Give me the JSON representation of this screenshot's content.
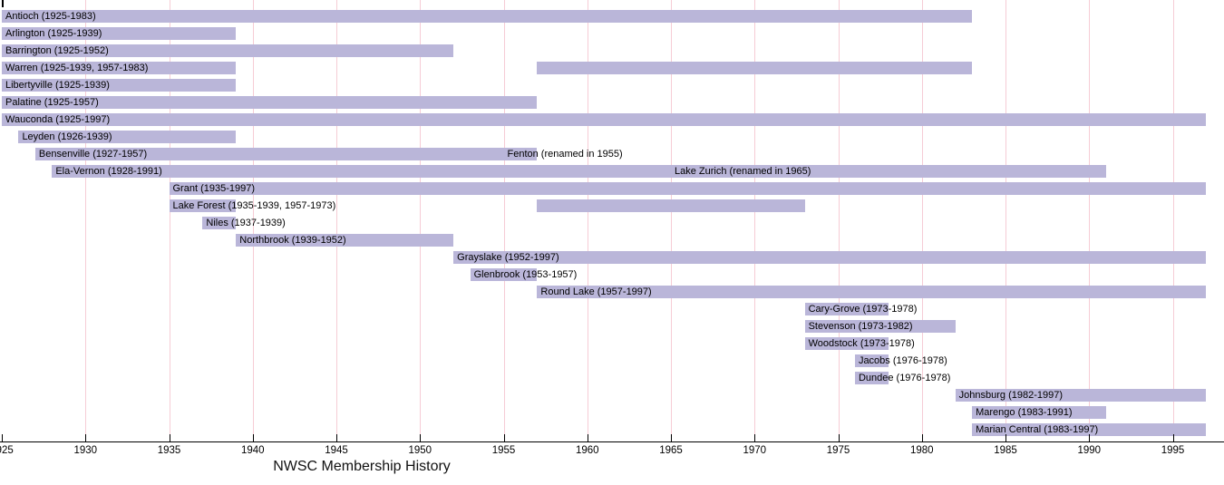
{
  "chart_data": {
    "type": "bar",
    "subtype": "gantt-timeline",
    "title": "NWSC Membership History",
    "x_axis": {
      "min": 1925,
      "max": 1998,
      "tick_years": [
        1925,
        1930,
        1935,
        1940,
        1945,
        1950,
        1955,
        1960,
        1965,
        1970,
        1975,
        1980,
        1985,
        1990,
        1995
      ],
      "tick_labels": [
        "1925",
        "1930",
        "1935",
        "1940",
        "1945",
        "1950",
        "1955",
        "1960",
        "1965",
        "1970",
        "1975",
        "1980",
        "1985",
        "1990",
        "1995"
      ],
      "grid": true
    },
    "colors": {
      "bar_fill": "#bab6d9",
      "gridline": "#f6ccd5",
      "axis": "#000000",
      "text": "#000000"
    },
    "legend": "none",
    "rows": [
      {
        "name": "Antioch",
        "label": "Antioch (1925-1983)",
        "segments": [
          [
            1925,
            1983
          ]
        ]
      },
      {
        "name": "Arlington",
        "label": "Arlington (1925-1939)",
        "segments": [
          [
            1925,
            1939
          ]
        ]
      },
      {
        "name": "Barrington",
        "label": "Barrington (1925-1952)",
        "segments": [
          [
            1925,
            1952
          ]
        ]
      },
      {
        "name": "Warren",
        "label": "Warren (1925-1939, 1957-1983)",
        "segments": [
          [
            1925,
            1939
          ],
          [
            1957,
            1983
          ]
        ]
      },
      {
        "name": "Libertyville",
        "label": "Libertyville (1925-1939)",
        "segments": [
          [
            1925,
            1939
          ]
        ]
      },
      {
        "name": "Palatine",
        "label": "Palatine (1925-1957)",
        "segments": [
          [
            1925,
            1957
          ]
        ]
      },
      {
        "name": "Wauconda",
        "label": "Wauconda (1925-1997)",
        "segments": [
          [
            1925,
            1997
          ]
        ]
      },
      {
        "name": "Leyden",
        "label": "Leyden (1926-1939)",
        "segments": [
          [
            1926,
            1939
          ]
        ]
      },
      {
        "name": "Bensenville",
        "label": "Bensenville (1927-1957)",
        "segments": [
          [
            1927,
            1957
          ]
        ],
        "secondary_label": {
          "text": "Fenton (renamed in 1955)",
          "anchor_year": 1955
        }
      },
      {
        "name": "Ela-Vernon",
        "label": "Ela-Vernon (1928-1991)",
        "segments": [
          [
            1928,
            1991
          ]
        ],
        "secondary_label": {
          "text": "Lake Zurich (renamed in 1965)",
          "anchor_year": 1965
        }
      },
      {
        "name": "Grant",
        "label": "Grant (1935-1997)",
        "segments": [
          [
            1935,
            1997
          ]
        ]
      },
      {
        "name": "Lake Forest",
        "label": "Lake Forest (1935-1939, 1957-1973)",
        "segments": [
          [
            1935,
            1939
          ],
          [
            1957,
            1973
          ]
        ]
      },
      {
        "name": "Niles",
        "label": "Niles (1937-1939)",
        "segments": [
          [
            1937,
            1939
          ]
        ]
      },
      {
        "name": "Northbrook",
        "label": "Northbrook (1939-1952)",
        "segments": [
          [
            1939,
            1952
          ]
        ]
      },
      {
        "name": "Grayslake",
        "label": "Grayslake (1952-1997)",
        "segments": [
          [
            1952,
            1997
          ]
        ]
      },
      {
        "name": "Glenbrook",
        "label": "Glenbrook (1953-1957)",
        "segments": [
          [
            1953,
            1957
          ]
        ]
      },
      {
        "name": "Round Lake",
        "label": "Round Lake (1957-1997)",
        "segments": [
          [
            1957,
            1997
          ]
        ]
      },
      {
        "name": "Cary-Grove",
        "label": "Cary-Grove (1973-1978)",
        "segments": [
          [
            1973,
            1978
          ]
        ]
      },
      {
        "name": "Stevenson",
        "label": "Stevenson (1973-1982)",
        "segments": [
          [
            1973,
            1982
          ]
        ]
      },
      {
        "name": "Woodstock",
        "label": "Woodstock (1973-1978)",
        "segments": [
          [
            1973,
            1978
          ]
        ]
      },
      {
        "name": "Jacobs",
        "label": "Jacobs (1976-1978)",
        "segments": [
          [
            1976,
            1978
          ]
        ]
      },
      {
        "name": "Dundee",
        "label": "Dundee (1976-1978)",
        "segments": [
          [
            1976,
            1978
          ]
        ]
      },
      {
        "name": "Johnsburg",
        "label": "Johnsburg (1982-1997)",
        "segments": [
          [
            1982,
            1997
          ]
        ]
      },
      {
        "name": "Marengo",
        "label": "Marengo (1983-1991)",
        "segments": [
          [
            1983,
            1991
          ]
        ]
      },
      {
        "name": "Marian Central",
        "label": "Marian Central (1983-1997)",
        "segments": [
          [
            1983,
            1997
          ]
        ]
      }
    ]
  }
}
